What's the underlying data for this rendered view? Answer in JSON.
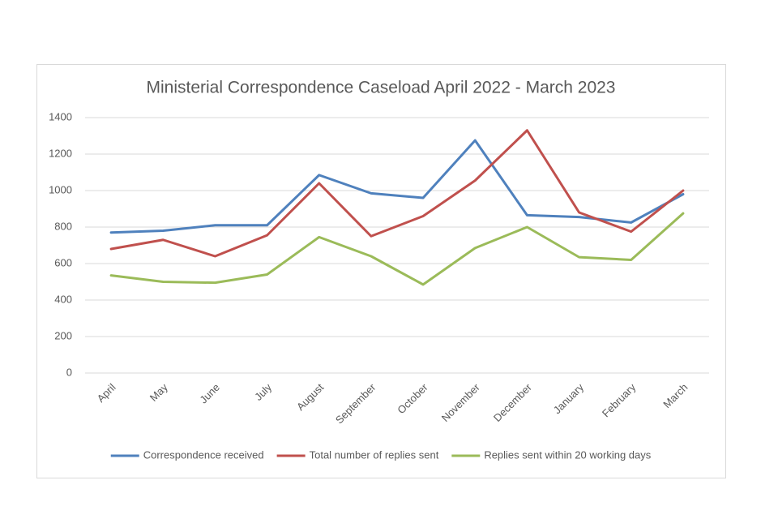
{
  "chart_data": {
    "type": "line",
    "title": "Ministerial Correspondence Caseload April 2022 - March 2023",
    "categories": [
      "April",
      "May",
      "June",
      "July",
      "August",
      "September",
      "October",
      "November",
      "December",
      "January",
      "February",
      "March"
    ],
    "series": [
      {
        "name": "Correspondence received",
        "color": "#4f81bd",
        "values": [
          770,
          780,
          810,
          810,
          1085,
          985,
          960,
          1275,
          865,
          855,
          825,
          980
        ]
      },
      {
        "name": "Total number of replies sent",
        "color": "#c0504d",
        "values": [
          680,
          730,
          640,
          755,
          1040,
          750,
          860,
          1055,
          1330,
          880,
          775,
          1000
        ]
      },
      {
        "name": "Replies sent within 20 working days",
        "color": "#9bbb59",
        "values": [
          535,
          500,
          495,
          540,
          745,
          640,
          485,
          685,
          800,
          635,
          620,
          875
        ]
      }
    ],
    "ylim": [
      0,
      1400
    ],
    "yticks": [
      0,
      200,
      400,
      600,
      800,
      1000,
      1200,
      1400
    ],
    "grid": true,
    "legend": "bottom"
  }
}
